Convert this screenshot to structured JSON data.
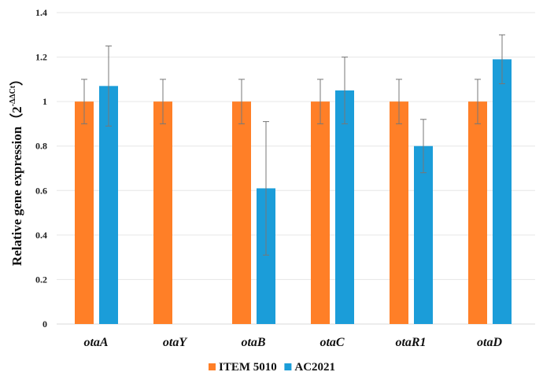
{
  "chart_data": {
    "type": "bar",
    "title": "",
    "xlabel": "",
    "ylabel": "Relative gene expression（2",
    "ylabel_superscript": "-ΔΔCt",
    "ylabel_close": "）",
    "ylim": [
      0,
      1.4
    ],
    "yticks": [
      0,
      0.2,
      0.4,
      0.6,
      0.8,
      1,
      1.2,
      1.4
    ],
    "ytick_labels": [
      "0",
      "0.2",
      "0.4",
      "0.6",
      "0.8",
      "1",
      "1.2",
      "1.4"
    ],
    "grid": true,
    "legend_position": "bottom",
    "categories": [
      "otaA",
      "otaY",
      "otaB",
      "otaC",
      "otaR1",
      "otaD"
    ],
    "series": [
      {
        "name": "ITEM 5010",
        "color": "#FF7F27",
        "values": [
          1.0,
          1.0,
          1.0,
          1.0,
          1.0,
          1.0
        ],
        "error_low": [
          0.9,
          0.9,
          0.9,
          0.9,
          0.9,
          0.9
        ],
        "error_high": [
          1.1,
          1.1,
          1.1,
          1.1,
          1.1,
          1.1
        ]
      },
      {
        "name": "AC2021",
        "color": "#1B9DD9",
        "values": [
          1.07,
          null,
          0.61,
          1.05,
          0.8,
          1.19
        ],
        "error_low": [
          0.89,
          null,
          0.31,
          0.9,
          0.68,
          1.08
        ],
        "error_high": [
          1.25,
          null,
          0.91,
          1.2,
          0.92,
          1.3
        ]
      }
    ]
  }
}
